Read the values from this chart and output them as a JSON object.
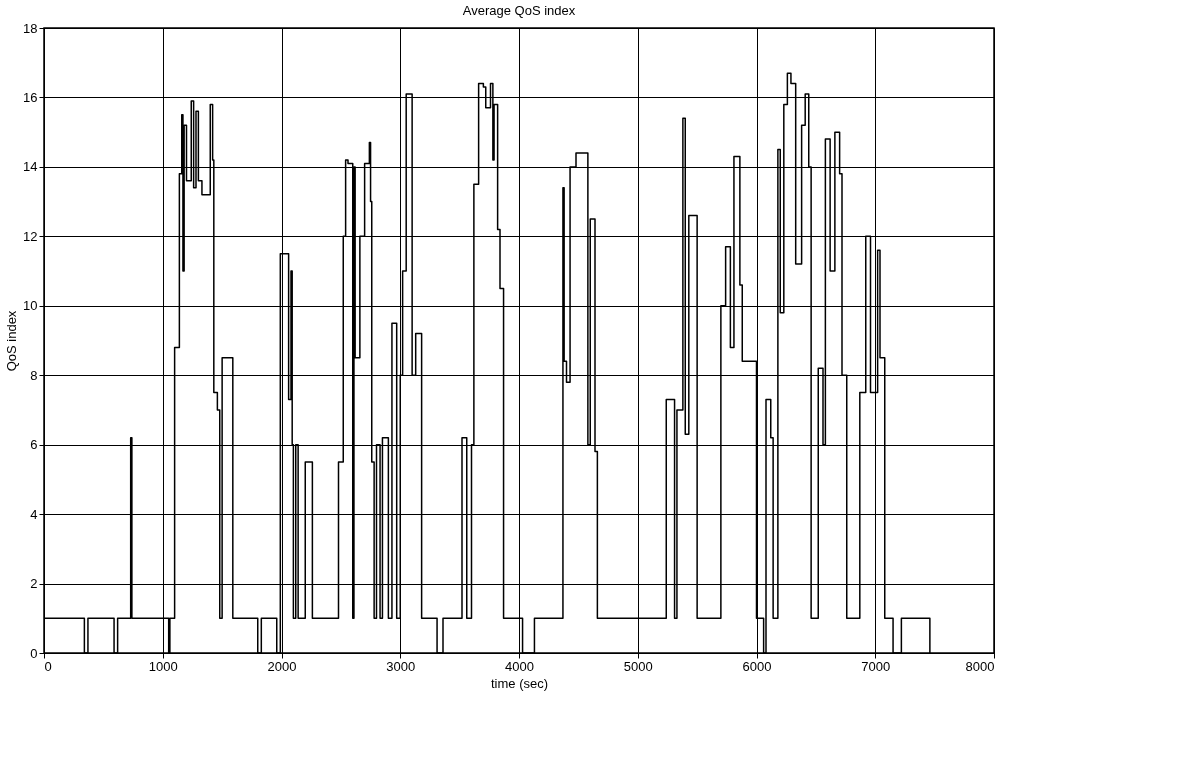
{
  "chart_data": {
    "type": "step",
    "title": "Average QoS index",
    "xlabel": "time (sec)",
    "ylabel": "QoS index",
    "xlim": [
      0,
      8000
    ],
    "xticks": [
      0,
      1000,
      2000,
      3000,
      4000,
      5000,
      6000,
      7000,
      8000
    ],
    "ylim": [
      0,
      18
    ],
    "yticks": [
      0,
      2,
      4,
      6,
      8,
      10,
      12,
      14,
      16,
      18
    ],
    "grid": true,
    "series": [
      {
        "color": "#000000",
        "x": [
          0,
          340,
          370,
          590,
          620,
          730,
          740,
          1050,
          1060,
          1100,
          1140,
          1160,
          1170,
          1180,
          1200,
          1240,
          1260,
          1280,
          1300,
          1330,
          1400,
          1420,
          1430,
          1460,
          1480,
          1500,
          1590,
          1800,
          1830,
          1960,
          1990,
          2060,
          2080,
          2090,
          2100,
          2120,
          2140,
          2200,
          2260,
          2480,
          2520,
          2540,
          2560,
          2600,
          2610,
          2620,
          2660,
          2700,
          2740,
          2750,
          2760,
          2780,
          2800,
          2830,
          2850,
          2900,
          2930,
          2970,
          3000,
          3020,
          3050,
          3100,
          3130,
          3180,
          3310,
          3360,
          3520,
          3560,
          3600,
          3620,
          3660,
          3700,
          3720,
          3760,
          3780,
          3790,
          3820,
          3840,
          3870,
          4030,
          4130,
          4370,
          4380,
          4400,
          4430,
          4480,
          4580,
          4600,
          4640,
          4660,
          5240,
          5310,
          5330,
          5380,
          5400,
          5430,
          5500,
          5700,
          5740,
          5780,
          5810,
          5860,
          5880,
          6000,
          6060,
          6080,
          6120,
          6140,
          6180,
          6200,
          6230,
          6260,
          6290,
          6330,
          6380,
          6410,
          6440,
          6460,
          6520,
          6560,
          6580,
          6620,
          6660,
          6700,
          6720,
          6760,
          6870,
          6920,
          6960,
          7020,
          7040,
          7080,
          7150,
          7220,
          7460
        ],
        "values": [
          1,
          0,
          1,
          0,
          1,
          6.2,
          1,
          0,
          1,
          8.8,
          13.8,
          15.5,
          11,
          15.2,
          13.6,
          15.9,
          13.4,
          15.6,
          13.6,
          13.2,
          15.8,
          14.2,
          7.5,
          7,
          1,
          8.5,
          1,
          0,
          1,
          0,
          11.5,
          7.3,
          11,
          6,
          1,
          6,
          1,
          5.5,
          1,
          5.5,
          12,
          14.2,
          14.1,
          1,
          14,
          8.5,
          12,
          14.1,
          14.7,
          13,
          5.5,
          1,
          6,
          1,
          6.2,
          1,
          9.5,
          1,
          8,
          11,
          16.1,
          8,
          9.2,
          1,
          0,
          1,
          6.2,
          1,
          6,
          13.5,
          16.4,
          16.3,
          15.7,
          16.4,
          14.2,
          15.8,
          12.2,
          10.5,
          1,
          0,
          1,
          13.4,
          8.4,
          7.8,
          14,
          14.4,
          6,
          12.5,
          5.8,
          1,
          7.3,
          1,
          7,
          15.4,
          6.3,
          12.6,
          1,
          10,
          11.7,
          8.8,
          14.3,
          10.6,
          8.4,
          1,
          0,
          7.3,
          6.2,
          1,
          14.5,
          9.8,
          15.8,
          16.7,
          16.4,
          11.2,
          15.2,
          16.1,
          14,
          1,
          8.2,
          6,
          14.8,
          11,
          15,
          13.8,
          8,
          1,
          7.5,
          12,
          7.5,
          11.6,
          8.5,
          1,
          0,
          1,
          0
        ]
      }
    ]
  }
}
